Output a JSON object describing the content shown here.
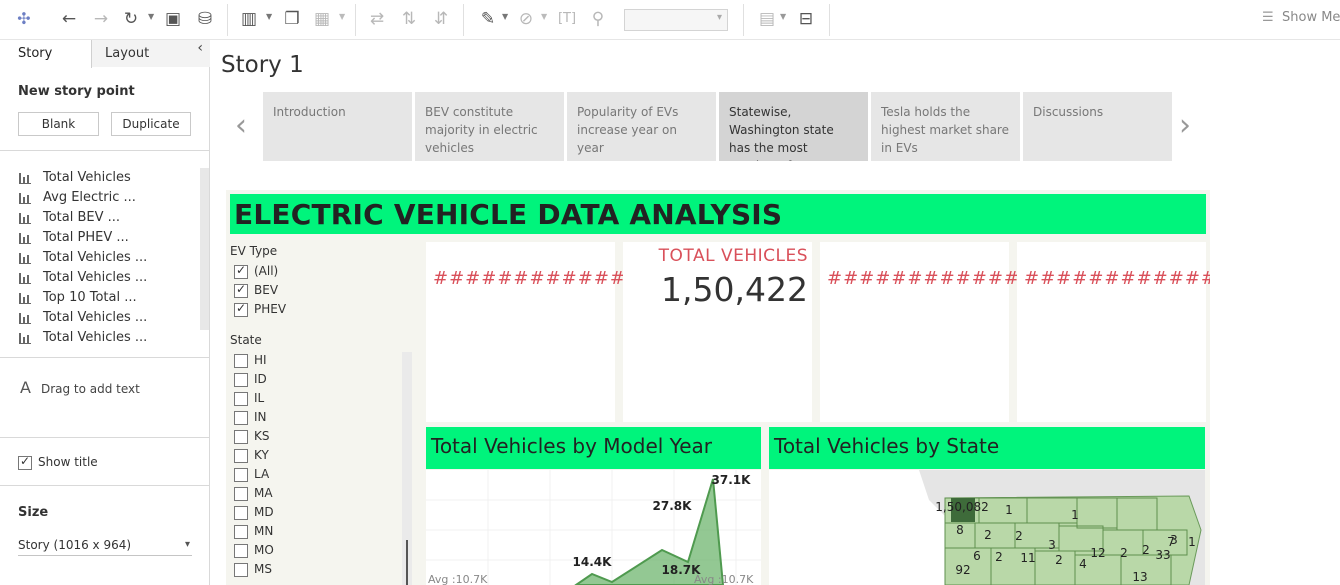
{
  "toolbar": {
    "icons": [
      "tableau-logo-icon",
      "undo-icon",
      "redo-icon",
      "replay-icon",
      "save-icon",
      "new-datasource-icon",
      "new-worksheet-icon",
      "duplicate-icon",
      "clear-icon",
      "swap-icon",
      "sort-asc-icon",
      "sort-desc-icon",
      "highlight-icon",
      "group-icon",
      "label-icon",
      "pin-icon",
      "fit-dropdown",
      "cards-icon",
      "presentation-icon"
    ],
    "show_me": "Show Me"
  },
  "sidebar": {
    "tabs": [
      "Story",
      "Layout"
    ],
    "new_story_point": "New story point",
    "blank_button": "Blank",
    "duplicate_button": "Duplicate",
    "sheets": [
      "Total Vehicles",
      "Avg Electric ...",
      "Total BEV ...",
      "Total PHEV ...",
      "Total Vehicles ...",
      "Total Vehicles ...",
      "Top 10 Total ...",
      "Total Vehicles ...",
      "Total Vehicles ..."
    ],
    "drag_text": "Drag to add text",
    "show_title": "Show title",
    "show_title_checked": true,
    "size_heading": "Size",
    "size_value": "Story (1016 x 964)"
  },
  "story": {
    "title": "Story 1",
    "points": [
      {
        "text": "Introduction",
        "active": false
      },
      {
        "text": "BEV constitute majority in electric vehicles",
        "active": false
      },
      {
        "text": "Popularity of EVs increase year on year",
        "active": false
      },
      {
        "text": "Statewise, Washington state has the most number of",
        "active": true
      },
      {
        "text": "Tesla holds the highest market share in EVs",
        "active": false
      },
      {
        "text": "Discussions",
        "active": false
      }
    ]
  },
  "dashboard": {
    "title": "ELECTRIC VEHICLE DATA ANALYSIS",
    "banner_color": "#00f47c",
    "ev_type_heading": "EV Type",
    "ev_types": [
      {
        "label": "(All)",
        "checked": true
      },
      {
        "label": "BEV",
        "checked": true
      },
      {
        "label": "PHEV",
        "checked": true
      }
    ],
    "state_heading": "State",
    "states": [
      "HI",
      "ID",
      "IL",
      "IN",
      "KS",
      "KY",
      "LA",
      "MA",
      "MD",
      "MN",
      "MO",
      "MS"
    ],
    "kpis": [
      {
        "label": "",
        "value": "##############"
      },
      {
        "label": "TOTAL VEHICLES",
        "value": "1,50,422"
      },
      {
        "label": "",
        "value": "##############"
      },
      {
        "label": "",
        "value": "##############"
      }
    ],
    "panels": {
      "model_year_title": "Total Vehicles by Model Year",
      "state_title": "Total Vehicles by State"
    }
  },
  "chart_data": [
    {
      "type": "area",
      "title": "Total Vehicles by Model Year",
      "data_labels": [
        "14.4K",
        "18.7K",
        "27.8K",
        "37.1K"
      ],
      "values": [
        14.4,
        18.7,
        27.8,
        37.1
      ],
      "reference_line": "Avg :10.7K",
      "color": "#6fb56f"
    },
    {
      "type": "map",
      "title": "Total Vehicles by State",
      "labels": [
        "1,50,082",
        "1",
        "1",
        "8",
        "2",
        "2",
        "3",
        "6",
        "2",
        "11",
        "2",
        "4",
        "12",
        "2",
        "2",
        "33",
        "7",
        "3",
        "1",
        "92",
        "13"
      ],
      "highlight_label": "1,50,082"
    }
  ]
}
